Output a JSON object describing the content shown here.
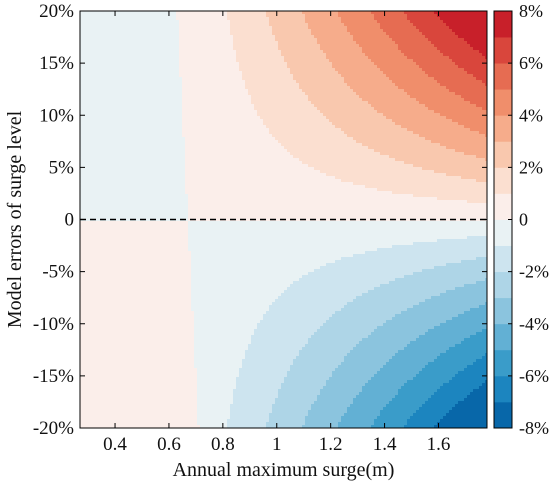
{
  "chart_data": {
    "type": "heatmap",
    "subtype": "filled-contour",
    "xlabel": "Annual maximum surge(m)",
    "ylabel": "Model errors of surge level",
    "xlim": [
      0.27,
      1.78
    ],
    "ylim": [
      -20,
      20
    ],
    "x_ticks": [
      0.4,
      0.6,
      0.8,
      1.0,
      1.2,
      1.4,
      1.6
    ],
    "x_tick_labels": [
      "0.4",
      "0.6",
      "0.8",
      "1",
      "1.2",
      "1.4",
      "1.6"
    ],
    "y_ticks": [
      -20,
      -15,
      -10,
      -5,
      0,
      5,
      10,
      15,
      20
    ],
    "y_tick_labels": [
      "-20%",
      "-15%",
      "-10%",
      "-5%",
      "0",
      "5%",
      "10%",
      "15%",
      "20%"
    ],
    "reference_line": {
      "y": 0,
      "style": "dashed",
      "color": "#000000"
    },
    "grid": false,
    "colorbar": {
      "position": "right",
      "range": [
        -8,
        8
      ],
      "step": 1,
      "tick_values": [
        -8,
        -6,
        -4,
        -2,
        0,
        2,
        4,
        6,
        8
      ],
      "tick_labels": [
        "-8%",
        "-6%",
        "-4%",
        "-2%",
        "0",
        "2%",
        "4%",
        "6%",
        "8%"
      ],
      "level_colors": [
        "#0867a9",
        "#1c85bf",
        "#3a9cc9",
        "#62b0d4",
        "#8bc4de",
        "#aed5e7",
        "#cde4ef",
        "#e9f2f4",
        "#fbeeea",
        "#fbdfd0",
        "#f9c8ae",
        "#f6ac8b",
        "#f08e6b",
        "#e66c52",
        "#d9463c",
        "#c8202a"
      ]
    },
    "contours": [
      {
        "level": "-1% to 0",
        "x_at_top": 0.63,
        "x_at_bottom": 0.71
      },
      {
        "level": "0 to 1%",
        "region_top_x_min": 0.63,
        "region_bottom_x_max": 0.71
      },
      {
        "level": "1%",
        "x_at_top": 1.05,
        "y_at_right": 3.0
      },
      {
        "level": "2%",
        "x_at_top": 1.2,
        "y_at_right": 6.0
      },
      {
        "level": "3%",
        "x_at_top": 1.33,
        "y_at_right": 9.0
      },
      {
        "level": "4%",
        "x_at_top": 1.44,
        "y_at_right": 11.7
      },
      {
        "level": "5%",
        "x_at_top": 1.52,
        "y_at_right": 14.3
      },
      {
        "level": "6%",
        "x_at_top": 1.6,
        "y_at_right": 16.6
      },
      {
        "level": "7%",
        "x_at_top": 1.68,
        "y_at_right": 18.8
      },
      {
        "level": "-1%",
        "x_at_bottom": 1.03,
        "y_at_right": -3.0
      },
      {
        "level": "-2%",
        "x_at_bottom": 1.24,
        "y_at_right": -6.0
      },
      {
        "level": "-3%",
        "x_at_bottom": 1.36,
        "y_at_right": -9.0
      },
      {
        "level": "-4%",
        "x_at_bottom": 1.46,
        "y_at_right": -11.8
      },
      {
        "level": "-5%",
        "x_at_bottom": 1.54,
        "y_at_right": -14.3
      },
      {
        "level": "-6%",
        "x_at_bottom": 1.61,
        "y_at_right": -16.7
      },
      {
        "level": "-7%",
        "x_at_bottom": 1.68,
        "y_at_right": -18.9
      }
    ],
    "value_range_shown": [
      -8,
      8
    ]
  }
}
